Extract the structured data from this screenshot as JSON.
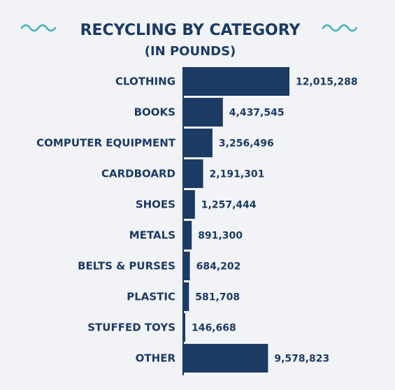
{
  "colors": {
    "background": "#f2f3f6",
    "bar": "#1b3a64",
    "text": "#1b3a64",
    "accent": "#3fb3b8"
  },
  "decorations": {
    "left_icon": "wave-icon",
    "right_icon": "wave-icon"
  },
  "chart_data": {
    "type": "bar",
    "orientation": "horizontal",
    "title": "RECYCLING BY CATEGORY",
    "subtitle": "(IN POUNDS)",
    "xlabel": "",
    "ylabel": "",
    "grid": false,
    "legend": "none",
    "categories": [
      "CLOTHING",
      "BOOKS",
      "COMPUTER EQUIPMENT",
      "CARDBOARD",
      "SHOES",
      "METALS",
      "BELTS & PURSES",
      "PLASTIC",
      "STUFFED TOYS",
      "OTHER"
    ],
    "values": [
      12015288,
      4437545,
      3256496,
      2191301,
      1257444,
      891300,
      684202,
      581708,
      146668,
      9578823
    ],
    "value_labels": [
      "12,015,288",
      "4,437,545",
      "3,256,496",
      "2,191,301",
      "1,257,444",
      "891,300",
      "684,202",
      "581,708",
      "146,668",
      "9,578,823"
    ],
    "xlim": [
      0,
      12015288
    ]
  }
}
